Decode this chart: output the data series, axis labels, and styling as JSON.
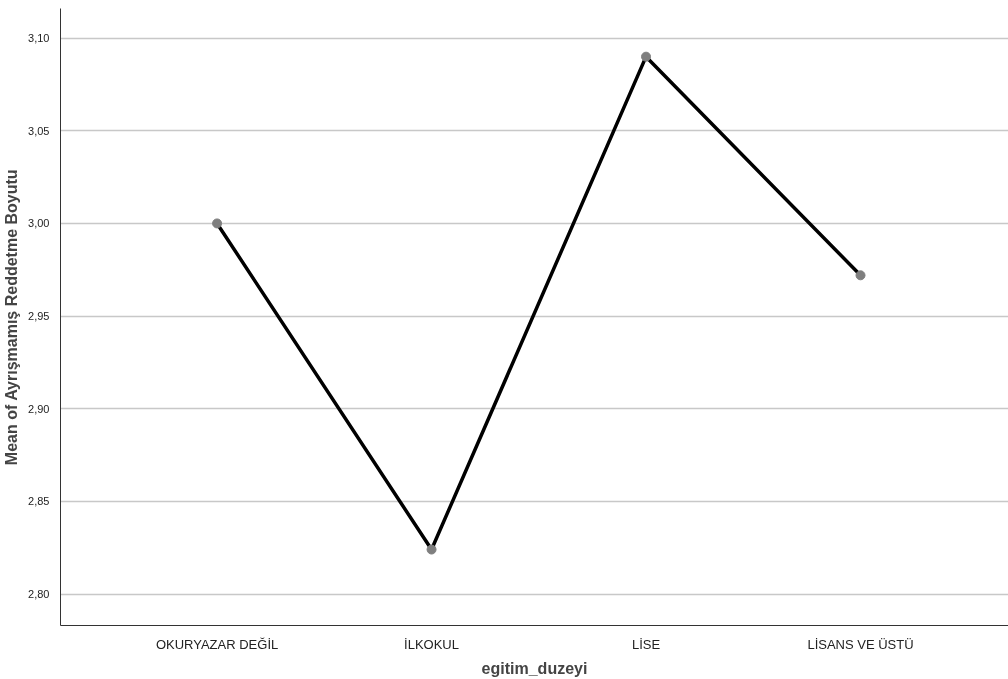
{
  "chart_data": {
    "type": "line",
    "xlabel": "egitim_duzeyi",
    "ylabel": "Mean of Ayrışmamış Reddetme Boyutu",
    "categories": [
      "OKURYAZAR DEĞİL",
      "İLKOKUL",
      "LİSE",
      "LİSANS VE ÜSTÜ"
    ],
    "series": [
      {
        "color": "#000000",
        "values": [
          3.0,
          2.824,
          3.09,
          2.972
        ]
      }
    ],
    "ylim": [
      2.783,
      3.116
    ],
    "yticks": [
      {
        "value": 2.8,
        "label": "2,80"
      },
      {
        "value": 2.85,
        "label": "2,85"
      },
      {
        "value": 2.9,
        "label": "2,90"
      },
      {
        "value": 2.95,
        "label": "2,95"
      },
      {
        "value": 3.0,
        "label": "3,00"
      },
      {
        "value": 3.05,
        "label": "3,05"
      },
      {
        "value": 3.1,
        "label": "3,10"
      }
    ],
    "grid": "y",
    "marker": "circle",
    "line_style": "solid"
  }
}
